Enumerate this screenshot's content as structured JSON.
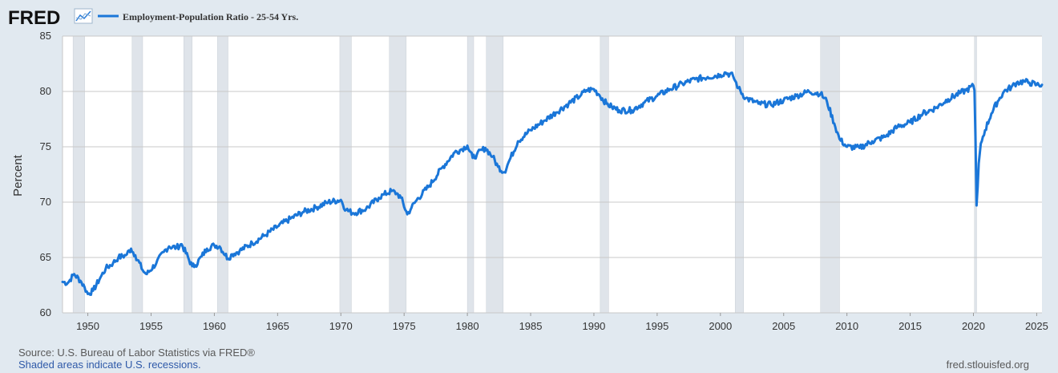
{
  "brand": {
    "name": "FRED",
    "icon": "line-chart-icon"
  },
  "footer": {
    "source": "Source: U.S. Bureau of Labor Statistics via FRED®",
    "note": "Shaded areas indicate U.S. recessions.",
    "site": "fred.stlouisfed.org"
  },
  "colors": {
    "series": "#1a76d8",
    "recession": "#dfe4ea",
    "plot_bg": "#ffffff",
    "page_bg": "#e1e9f0",
    "grid": "#c8c8c8"
  },
  "chart_data": {
    "type": "line",
    "title": "",
    "xlabel": "",
    "ylabel": "Percent",
    "xlim": [
      "1948-01",
      "2025-06"
    ],
    "ylim": [
      60,
      85
    ],
    "yticks": [
      60,
      65,
      70,
      75,
      80,
      85
    ],
    "xticks": [
      1950,
      1955,
      1960,
      1965,
      1970,
      1975,
      1980,
      1985,
      1990,
      1995,
      2000,
      2005,
      2010,
      2015,
      2020,
      2025
    ],
    "grid": true,
    "legend_position": "top-left",
    "recessions": [
      [
        "1948-11",
        "1949-10"
      ],
      [
        "1953-07",
        "1954-05"
      ],
      [
        "1957-08",
        "1958-04"
      ],
      [
        "1960-04",
        "1961-02"
      ],
      [
        "1969-12",
        "1970-11"
      ],
      [
        "1973-11",
        "1975-03"
      ],
      [
        "1980-01",
        "1980-07"
      ],
      [
        "1981-07",
        "1982-11"
      ],
      [
        "1990-07",
        "1991-03"
      ],
      [
        "2001-03",
        "2001-11"
      ],
      [
        "2007-12",
        "2009-06"
      ],
      [
        "2020-02",
        "2020-04"
      ]
    ],
    "series": [
      {
        "name": "Employment-Population Ratio - 25-54 Yrs.",
        "color": "#1a76d8",
        "x": [
          "1948-01",
          "1948-06",
          "1948-12",
          "1949-06",
          "1949-10",
          "1950-01",
          "1950-06",
          "1951-01",
          "1951-06",
          "1952-01",
          "1952-06",
          "1953-01",
          "1953-06",
          "1953-10",
          "1954-06",
          "1954-09",
          "1955-06",
          "1956-01",
          "1956-06",
          "1957-01",
          "1957-06",
          "1958-04",
          "1958-07",
          "1959-01",
          "1959-06",
          "1960-01",
          "1960-06",
          "1961-02",
          "1961-06",
          "1962-01",
          "1963-01",
          "1964-01",
          "1965-01",
          "1966-01",
          "1967-01",
          "1968-01",
          "1969-01",
          "1970-01",
          "1970-06",
          "1971-01",
          "1972-01",
          "1973-01",
          "1973-06",
          "1974-01",
          "1974-06",
          "1974-10",
          "1975-04",
          "1975-08",
          "1976-01",
          "1977-01",
          "1978-01",
          "1979-01",
          "1979-06",
          "1980-01",
          "1980-06",
          "1980-10",
          "1981-06",
          "1982-01",
          "1982-06",
          "1982-12",
          "1983-06",
          "1984-01",
          "1985-01",
          "1986-01",
          "1987-01",
          "1988-01",
          "1989-01",
          "1989-06",
          "1990-01",
          "1990-06",
          "1991-01",
          "1991-06",
          "1992-01",
          "1993-01",
          "1994-01",
          "1995-01",
          "1996-01",
          "1997-01",
          "1998-01",
          "1999-01",
          "2000-01",
          "2000-06",
          "2001-01",
          "2001-06",
          "2002-01",
          "2003-01",
          "2004-01",
          "2005-01",
          "2006-01",
          "2007-01",
          "2007-12",
          "2008-06",
          "2009-01",
          "2009-06",
          "2010-01",
          "2011-01",
          "2012-01",
          "2013-01",
          "2014-01",
          "2015-01",
          "2016-01",
          "2017-01",
          "2018-01",
          "2019-01",
          "2019-06",
          "2020-01",
          "2020-02",
          "2020-03",
          "2020-04",
          "2020-05",
          "2020-06",
          "2020-08",
          "2020-12",
          "2021-06",
          "2021-12",
          "2022-06",
          "2023-01",
          "2023-06",
          "2024-01",
          "2024-06",
          "2025-01",
          "2025-06"
        ],
        "y": [
          62.8,
          62.7,
          63.5,
          62.9,
          62.3,
          61.7,
          62.0,
          63.2,
          64.0,
          64.5,
          65.0,
          65.2,
          65.8,
          65.2,
          63.7,
          63.5,
          64.5,
          65.5,
          66.0,
          65.9,
          66.2,
          64.2,
          64.3,
          65.1,
          65.8,
          66.1,
          66.0,
          64.9,
          65.3,
          65.6,
          66.3,
          67.0,
          67.8,
          68.5,
          69.1,
          69.5,
          70.0,
          70.2,
          69.3,
          69.0,
          69.4,
          70.4,
          70.7,
          71.0,
          70.8,
          70.4,
          68.9,
          69.5,
          70.2,
          71.5,
          73.1,
          74.5,
          74.7,
          75.1,
          74.0,
          74.3,
          74.9,
          74.1,
          73.2,
          72.7,
          74.0,
          75.5,
          76.5,
          77.3,
          78.1,
          78.9,
          79.7,
          80.1,
          80.2,
          79.7,
          78.9,
          78.6,
          78.3,
          78.3,
          79.0,
          79.6,
          80.2,
          80.7,
          81.1,
          81.3,
          81.5,
          81.7,
          81.4,
          80.3,
          79.4,
          78.9,
          78.8,
          79.2,
          79.6,
          80.0,
          79.8,
          79.1,
          77.1,
          75.7,
          75.0,
          74.9,
          75.5,
          75.9,
          76.8,
          77.2,
          78.0,
          78.5,
          79.3,
          79.9,
          80.1,
          80.5,
          80.1,
          75.5,
          69.7,
          71.4,
          73.5,
          75.3,
          76.5,
          78.0,
          79.1,
          80.0,
          80.4,
          80.8,
          80.9,
          80.8,
          80.6,
          80.6
        ]
      }
    ]
  }
}
